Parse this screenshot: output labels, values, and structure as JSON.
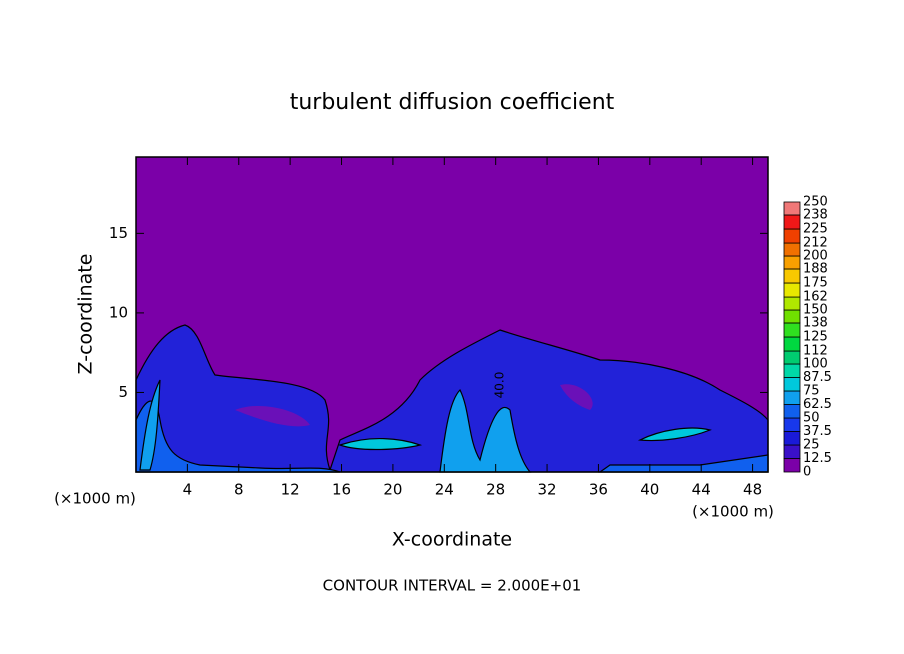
{
  "chart_data": {
    "type": "contour",
    "title": "turbulent diffusion coefficient",
    "x_label": "X-coordinate",
    "y_label": "Z-coordinate",
    "x_unit_left": "(×1000 m)",
    "x_unit_right": "(×1000 m)",
    "footnote": "CONTOUR INTERVAL = 2.000E+01",
    "xlim": [
      0,
      49.2
    ],
    "ylim": [
      0,
      19.8
    ],
    "xticks": [
      4,
      8,
      12,
      16,
      20,
      24,
      28,
      32,
      36,
      40,
      44,
      48
    ],
    "yticks": [
      5,
      10,
      15
    ],
    "contour_label": "40.0",
    "colorbar": {
      "levels": [
        0,
        12.5,
        25,
        37.5,
        50,
        62.5,
        75,
        87.5,
        100,
        112,
        125,
        138,
        150,
        162,
        175,
        188,
        200,
        212,
        225,
        238,
        250
      ],
      "colors": [
        "#7b00a8",
        "#3a10c8",
        "#1a1ad8",
        "#1838ec",
        "#1060ee",
        "#10a0ee",
        "#00c8dc",
        "#00d8a8",
        "#00cc70",
        "#00d840",
        "#30e020",
        "#70e000",
        "#b0e800",
        "#e8e800",
        "#f8c800",
        "#f8a000",
        "#f07000",
        "#f04000",
        "#f01818",
        "#f07878"
      ]
    }
  }
}
